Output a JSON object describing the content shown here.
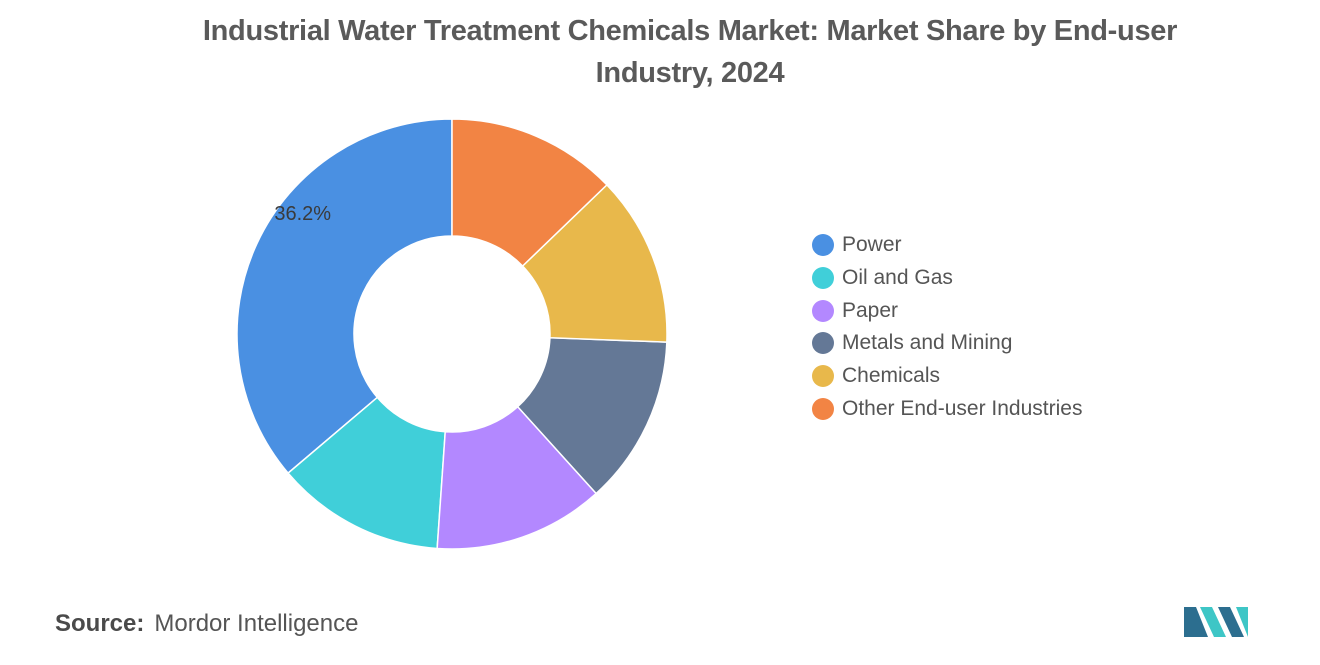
{
  "title": "Industrial Water Treatment Chemicals Market: Market Share by End-user Industry, 2024",
  "chart_data": {
    "type": "pie",
    "donut": true,
    "title": "Industrial Water Treatment Chemicals Market: Market Share by End-user Industry, 2024",
    "legend_position": "right",
    "start": "top",
    "direction": "counterclockwise",
    "series": [
      {
        "name": "Power",
        "value": 36.2,
        "color": "#4a90e2",
        "label": "36.2%"
      },
      {
        "name": "Oil and Gas",
        "value": 12.7,
        "color": "#40cfd9"
      },
      {
        "name": "Paper",
        "value": 12.8,
        "color": "#b388ff"
      },
      {
        "name": "Metals and Mining",
        "value": 12.7,
        "color": "#647896"
      },
      {
        "name": "Chemicals",
        "value": 12.8,
        "color": "#e8b84b"
      },
      {
        "name": "Other End-user Industries",
        "value": 12.8,
        "color": "#f28444"
      }
    ]
  },
  "source": {
    "label": "Source:",
    "text": "Mordor Intelligence"
  },
  "logo": {
    "icon": "mordor-intelligence-logo-icon",
    "color_dark": "#2c6e8f",
    "color_light": "#3ec6c6"
  }
}
